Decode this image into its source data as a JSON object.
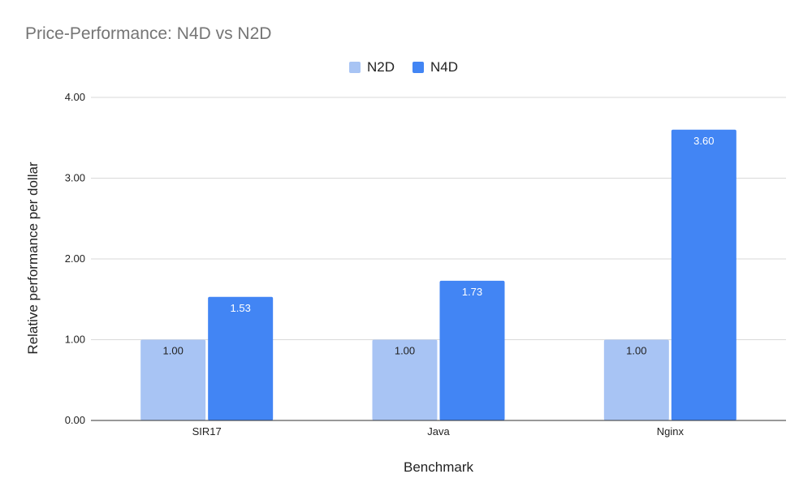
{
  "chart_data": {
    "type": "bar",
    "title": "Price-Performance: N4D vs N2D",
    "xlabel": "Benchmark",
    "ylabel": "Relative performance per dollar",
    "categories": [
      "SIR17",
      "Java",
      "Nginx"
    ],
    "series": [
      {
        "name": "N2D",
        "values": [
          1.0,
          1.0,
          1.0
        ],
        "color": "#a8c4f4",
        "label_color": "#222222"
      },
      {
        "name": "N4D",
        "values": [
          1.53,
          1.73,
          3.6
        ],
        "color": "#4285f4",
        "label_color": "#ffffff"
      }
    ],
    "ylim": [
      0,
      4
    ],
    "yticks": [
      "0.00",
      "1.00",
      "2.00",
      "3.00",
      "4.00"
    ],
    "grid": true,
    "legend": "top-center",
    "data_labels": true
  }
}
